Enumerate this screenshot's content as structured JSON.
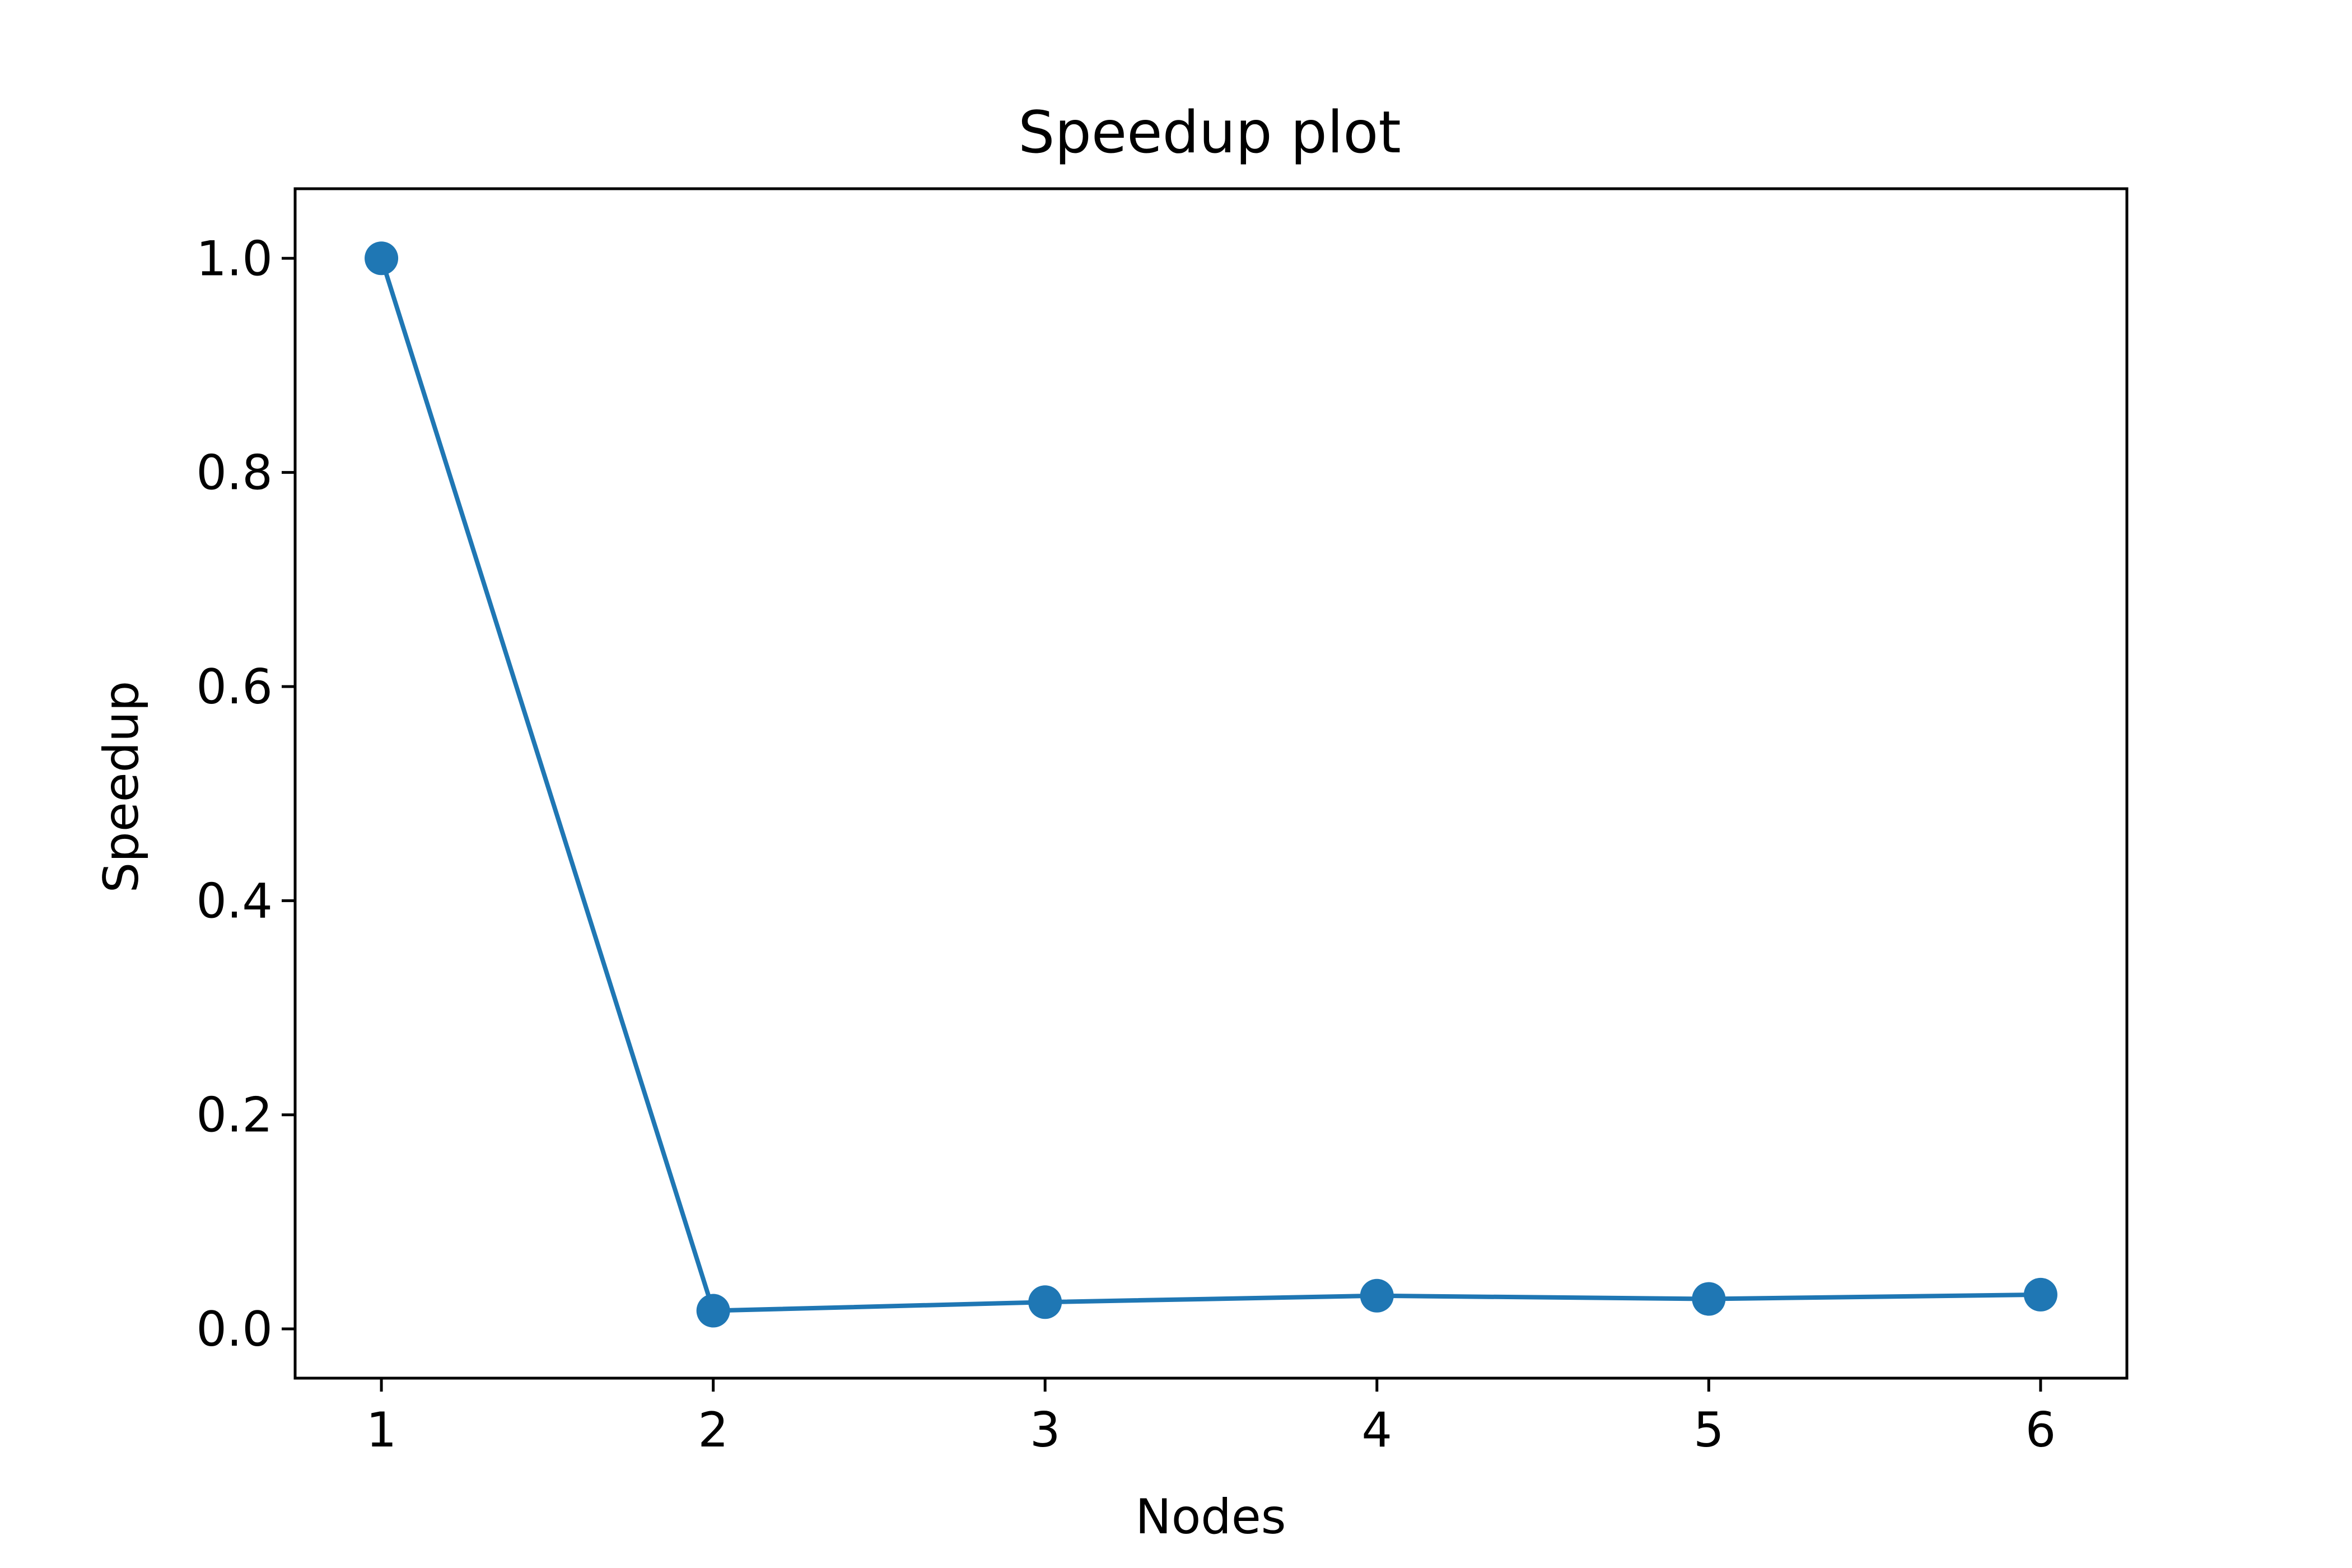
{
  "chart_data": {
    "type": "line",
    "title": "Speedup plot",
    "xlabel": "Nodes",
    "ylabel": "Speedup",
    "x": [
      1,
      2,
      3,
      4,
      5,
      6
    ],
    "series": [
      {
        "values": [
          1.0,
          0.017,
          0.025,
          0.031,
          0.028,
          0.032
        ],
        "color": "#1f77b4",
        "marker": "circle"
      }
    ],
    "xlim": [
      0.74,
      6.26
    ],
    "ylim": [
      -0.046,
      1.065
    ],
    "xticks": [
      1,
      2,
      3,
      4,
      5,
      6
    ],
    "xtick_labels": [
      "1",
      "2",
      "3",
      "4",
      "5",
      "6"
    ],
    "yticks": [
      0.0,
      0.2,
      0.4,
      0.6,
      0.8,
      1.0
    ],
    "ytick_labels": [
      "0.0",
      "0.2",
      "0.4",
      "0.6",
      "0.8",
      "1.0"
    ],
    "grid": false,
    "legend": false
  }
}
